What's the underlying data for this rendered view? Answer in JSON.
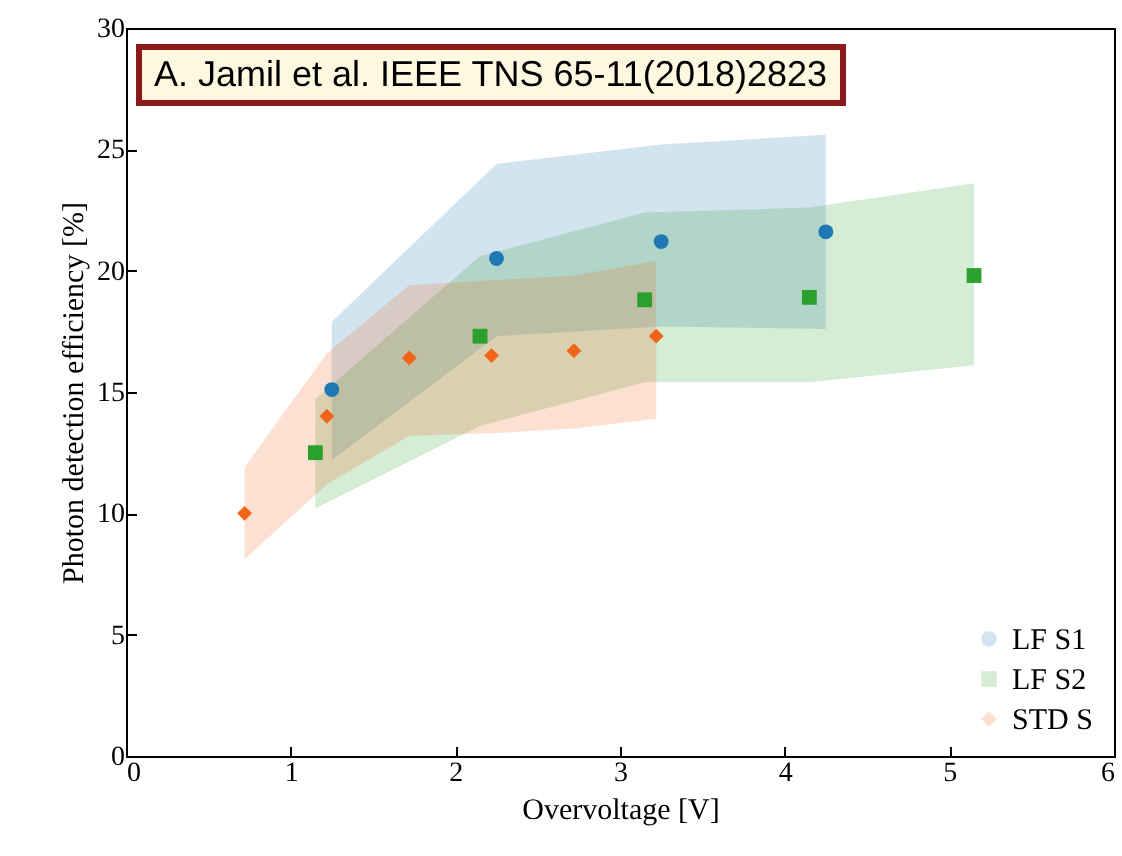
{
  "chart_data": {
    "type": "scatter",
    "xlabel": "Overvoltage [V]",
    "ylabel": "Photon detection efficiency [%]",
    "annotations": [
      "A. Jamil et al. IEEE TNS 65-11(2018)2823"
    ],
    "xlim": [
      0,
      6
    ],
    "xticks": [
      0,
      1,
      2,
      3,
      4,
      5,
      6
    ],
    "ylim": [
      0,
      30
    ],
    "yticks": [
      0,
      5,
      10,
      15,
      20,
      25,
      30
    ],
    "grid": false,
    "legend": "bottom right",
    "series": [
      {
        "name": "LF S1",
        "color": "#1f77b4",
        "marker": "circle",
        "x": [
          1.25,
          2.25,
          3.25,
          4.25
        ],
        "values": [
          15.1,
          20.5,
          21.2,
          21.6
        ],
        "lower": [
          12.2,
          17.3,
          17.7,
          17.6
        ],
        "upper": [
          17.9,
          24.4,
          25.2,
          25.6
        ]
      },
      {
        "name": "LF S2",
        "color": "#2ca02c",
        "marker": "square",
        "x": [
          1.15,
          2.15,
          3.15,
          4.15,
          5.15
        ],
        "values": [
          12.5,
          17.3,
          18.8,
          18.9,
          19.8
        ],
        "lower": [
          10.2,
          13.6,
          15.4,
          15.4,
          16.1
        ],
        "upper": [
          14.7,
          20.6,
          22.4,
          22.6,
          23.6
        ]
      },
      {
        "name": "STD S",
        "color": "#f26419",
        "marker": "diamond",
        "x": [
          0.72,
          1.22,
          1.72,
          2.22,
          2.72,
          3.22
        ],
        "values": [
          10.0,
          14.0,
          16.4,
          16.5,
          16.7,
          17.3
        ],
        "lower": [
          8.1,
          11.2,
          13.2,
          13.3,
          13.5,
          13.9
        ],
        "upper": [
          11.9,
          16.6,
          19.4,
          19.6,
          19.8,
          20.4
        ]
      }
    ]
  }
}
